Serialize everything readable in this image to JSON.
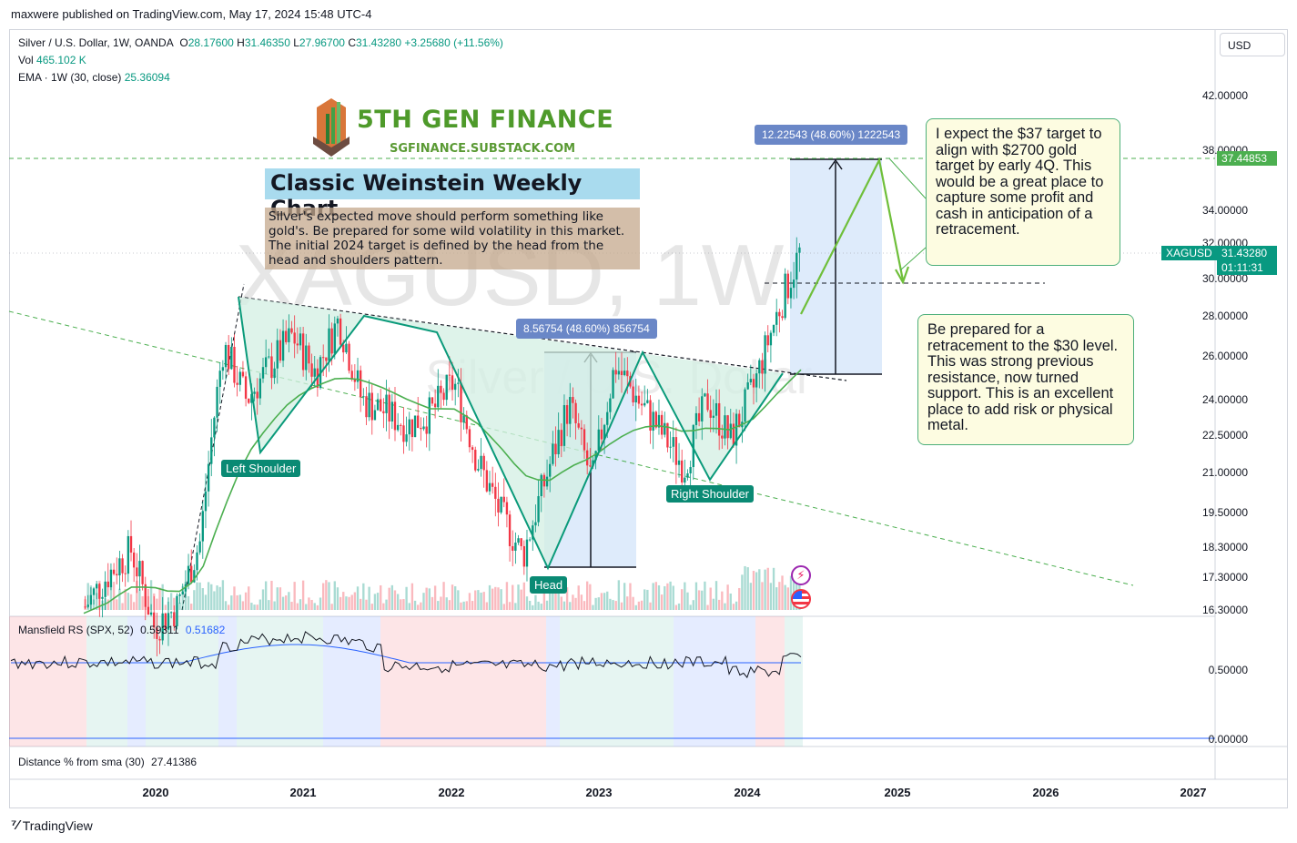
{
  "header": {
    "published": "maxwere published on TradingView.com, May 17, 2024 15:48 UTC-4"
  },
  "legend": {
    "symbol": "Silver / U.S. Dollar, 1W, OANDA",
    "o_label": "O",
    "o_value": "28.17600",
    "h_label": "H",
    "h_value": "31.46350",
    "l_label": "L",
    "l_value": "27.96700",
    "c_label": "C",
    "c_value": "31.43280",
    "change": "+3.25680 (+11.56%)",
    "vol_label": "Vol",
    "vol_value": "465.102 K",
    "ema_label": "EMA · 1W (30, close)",
    "ema_value": "25.36094"
  },
  "currency_button": "USD",
  "logo": {
    "title": "5TH GEN FINANCE",
    "subtitle": "SGFINANCE.SUBSTACK.COM"
  },
  "chart_title": "Classic Weinstein Weekly Chart",
  "description": "Silver's expected move should perform something like gold's.  Be prepared for some wild volatility in this market.  The initial 2024 target is defined by the head from the head and shoulders pattern.",
  "watermark": {
    "symbol": "XAGUSD, 1W",
    "name": "Silver / U.S. Dollar"
  },
  "annotations": {
    "left_shoulder": "Left Shoulder",
    "head": "Head",
    "right_shoulder": "Right Shoulder",
    "measure_small": "8.56754 (48.60%) 856754",
    "measure_large": "12.22543 (48.60%) 1222543",
    "note_target": "I expect the $37 target to align with $2700 gold target by early 4Q. This would be a great place to capture some profit and cash in anticipation of a retracement.",
    "note_retrace": "Be prepared for a retracement to the $30 level.  This was strong previous resistance, now turned support.  This is an excellent place to add risk or physical metal."
  },
  "price_axis": {
    "labels": [
      "42.00000",
      "38.00000",
      "34.00000",
      "32.00000",
      "30.00000",
      "28.00000",
      "26.00000",
      "24.00000",
      "22.50000",
      "21.00000",
      "19.50000",
      "18.30000",
      "17.30000",
      "16.30000"
    ],
    "target_tag": "37.44853",
    "symbol_tag": "XAGUSD",
    "last_price": "31.43280",
    "countdown": "01:11:31"
  },
  "mansfield": {
    "label": "Mansfield RS (SPX, 52)",
    "value1": "0.59311",
    "value2": "0.51682",
    "axis": [
      "0.50000",
      "0.00000"
    ]
  },
  "distance": {
    "label": "Distance % from sma (30)",
    "value": "27.41386"
  },
  "time_axis": [
    "2020",
    "2021",
    "2022",
    "2023",
    "2024",
    "2025",
    "2026",
    "2027"
  ],
  "footer": {
    "brand": "TradingView"
  },
  "colors": {
    "up": "#089981",
    "down": "#f23645",
    "ema": "#4caf50",
    "target_line": "#4caf50",
    "rs_line": "#131722",
    "rs_ma": "#2962ff"
  },
  "chart_data": {
    "type": "line",
    "title": "Silver / U.S. Dollar, 1W, OANDA",
    "xlabel": "",
    "ylabel": "",
    "scale": "log",
    "ylim": [
      16.3,
      43.0
    ],
    "x": [
      "2019-07",
      "2019-10",
      "2020-01",
      "2020-03",
      "2020-05",
      "2020-07",
      "2020-08",
      "2020-10",
      "2020-12",
      "2021-02",
      "2021-04",
      "2021-06",
      "2021-08",
      "2021-10",
      "2021-12",
      "2022-02",
      "2022-04",
      "2022-06",
      "2022-08",
      "2022-09",
      "2022-11",
      "2023-01",
      "2023-03",
      "2023-05",
      "2023-07",
      "2023-09",
      "2023-10",
      "2023-12",
      "2024-02",
      "2024-03",
      "2024-04",
      "2024-05"
    ],
    "series": [
      {
        "name": "XAGUSD",
        "values": [
          16.4,
          17.4,
          18.2,
          15.8,
          16.4,
          18.5,
          26.5,
          24.0,
          25.5,
          27.0,
          25.2,
          27.8,
          24.0,
          23.5,
          22.9,
          23.4,
          24.8,
          21.5,
          19.5,
          18.0,
          20.8,
          23.8,
          20.6,
          25.6,
          24.0,
          22.6,
          21.2,
          24.0,
          22.3,
          24.5,
          28.0,
          31.43
        ]
      },
      {
        "name": "EMA 1W (30, close)",
        "values": [
          16.2,
          16.5,
          17.0,
          17.0,
          16.8,
          17.3,
          19.5,
          21.6,
          22.9,
          24.0,
          24.6,
          25.0,
          24.9,
          24.5,
          24.0,
          23.6,
          23.6,
          23.0,
          22.0,
          20.9,
          20.6,
          21.2,
          21.6,
          22.3,
          22.8,
          22.9,
          22.6,
          22.8,
          22.7,
          23.2,
          24.3,
          25.36
        ]
      }
    ]
  }
}
